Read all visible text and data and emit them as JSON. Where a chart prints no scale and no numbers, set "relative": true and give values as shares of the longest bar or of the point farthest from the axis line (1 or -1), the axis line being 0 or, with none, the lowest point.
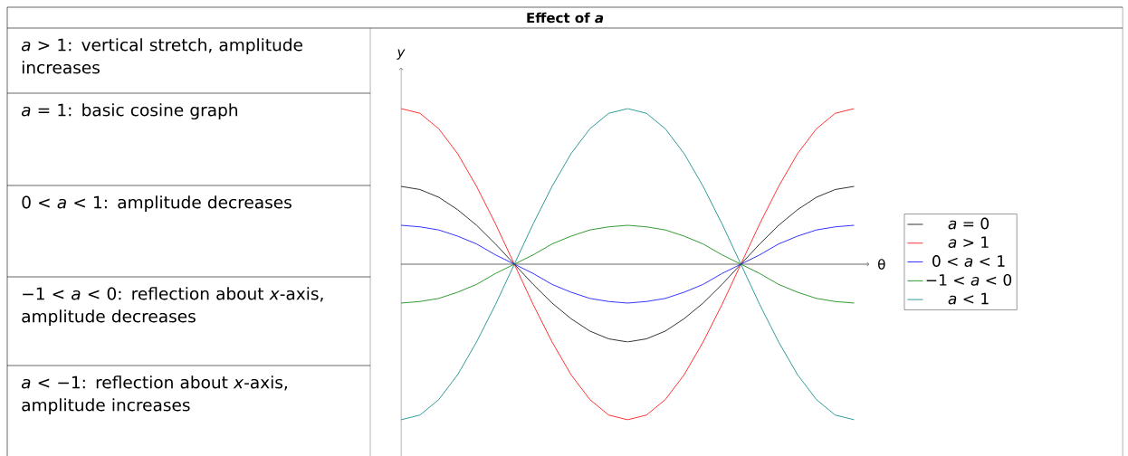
{
  "chart_data": {
    "type": "line",
    "title": "Effect of *a*",
    "xlabel": "θ",
    "ylabel": "*y*",
    "relative": true,
    "legend": "right",
    "categories": [
      null,
      null,
      null,
      null,
      null,
      null,
      null,
      null,
      null,
      null,
      null,
      null,
      null,
      null,
      null,
      null,
      null,
      null,
      null,
      null,
      null,
      null,
      null,
      null,
      null
    ],
    "series": [
      {
        "name": "*a* = 0",
        "color": "#000000",
        "values": [
          0.5,
          0.48,
          0.43,
          0.35,
          0.25,
          0.13,
          0,
          -0.13,
          -0.25,
          -0.35,
          -0.43,
          -0.48,
          -0.5,
          -0.48,
          -0.43,
          -0.35,
          -0.25,
          -0.13,
          0,
          0.13,
          0.25,
          0.35,
          0.43,
          0.48,
          0.5
        ]
      },
      {
        "name": "*a* > 1",
        "color": "#ff0000",
        "values": [
          1,
          0.97,
          0.87,
          0.71,
          0.5,
          0.26,
          0,
          -0.26,
          -0.5,
          -0.71,
          -0.87,
          -0.97,
          -1,
          -0.97,
          -0.87,
          -0.71,
          -0.5,
          -0.26,
          0,
          0.26,
          0.5,
          0.71,
          0.87,
          0.97,
          1
        ]
      },
      {
        "name": "0 < *a* < 1",
        "color": "#0000ff",
        "values": [
          0.25,
          0.24,
          0.22,
          0.18,
          0.13,
          0.06,
          0,
          -0.06,
          -0.13,
          -0.18,
          -0.22,
          -0.24,
          -0.25,
          -0.24,
          -0.22,
          -0.18,
          -0.13,
          -0.06,
          0,
          0.06,
          0.13,
          0.18,
          0.22,
          0.24,
          0.25
        ]
      },
      {
        "name": "−1 < *a* < 0",
        "color": "#008000",
        "values": [
          -0.25,
          -0.24,
          -0.22,
          -0.18,
          -0.13,
          -0.06,
          0,
          0.06,
          0.13,
          0.18,
          0.22,
          0.24,
          0.25,
          0.24,
          0.22,
          0.18,
          0.13,
          0.06,
          0,
          -0.06,
          -0.13,
          -0.18,
          -0.22,
          -0.24,
          -0.25
        ]
      },
      {
        "name": "*a* < 1",
        "color": "#008080",
        "values": [
          -1,
          -0.97,
          -0.87,
          -0.71,
          -0.5,
          -0.26,
          0,
          0.26,
          0.5,
          0.71,
          0.87,
          0.97,
          1,
          0.97,
          0.87,
          0.71,
          0.5,
          0.26,
          0,
          -0.26,
          -0.5,
          -0.71,
          -0.87,
          -0.97,
          -1
        ]
      }
    ],
    "annotations": [
      "*a* > 1: vertical stretch, amplitude increases",
      "*a* = 1: basic cosine graph",
      "0 < *a* < 1: amplitude decreases",
      "−1 < *a* < 0: reflection about *x*-axis, amplitude decreases",
      "*a* < −1: reflection about *x*-axis, amplitude increases"
    ]
  }
}
